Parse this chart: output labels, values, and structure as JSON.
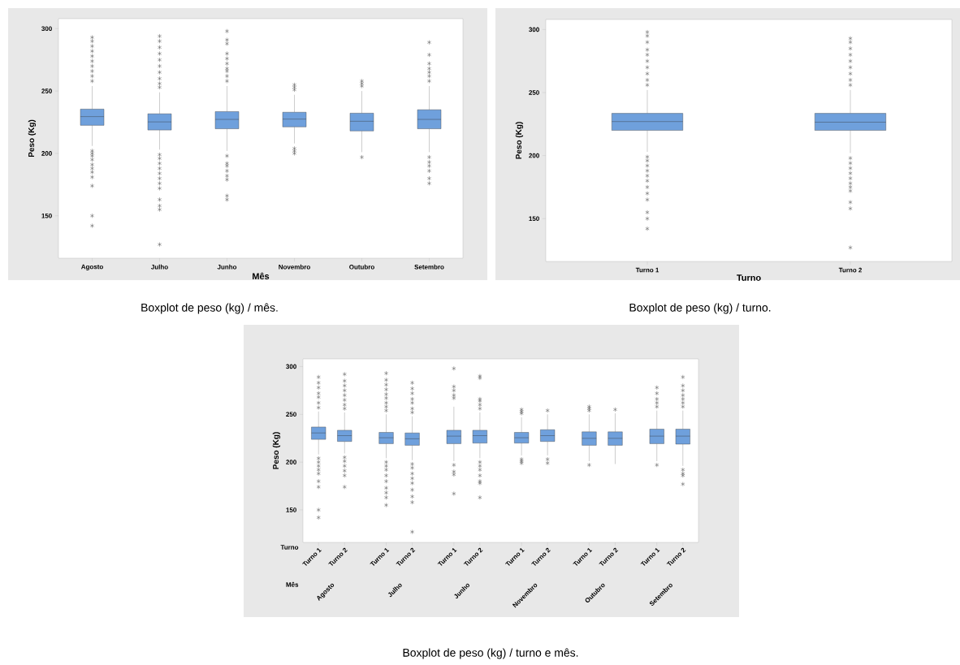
{
  "chart_data": [
    {
      "type": "box",
      "xlabel": "Mês",
      "ylabel": "Peso (Kg)",
      "categories": [
        "Agosto",
        "Julho",
        "Junho",
        "Novembro",
        "Outubro",
        "Setembro"
      ],
      "color": "#6fa0dc",
      "marker": "star",
      "ylim": [
        116,
        308
      ],
      "yticks": [
        150,
        200,
        250,
        300
      ],
      "boxes": [
        {
          "low": 206,
          "q1": 222.5,
          "median": 229.5,
          "q3": 235.5,
          "high": 254,
          "outliers": [
            258,
            262,
            266,
            270,
            274,
            278,
            282,
            286,
            290,
            293,
            202,
            200,
            198,
            195,
            191,
            188,
            185,
            181,
            174,
            150,
            142
          ]
        },
        {
          "low": 203,
          "q1": 218.75,
          "median": 225.25,
          "q3": 231.75,
          "high": 249,
          "outliers": [
            253,
            256,
            260,
            265,
            270,
            275,
            280,
            285,
            290,
            294,
            199,
            196,
            192,
            188,
            184,
            180,
            176,
            172,
            163,
            158,
            155,
            127
          ]
        },
        {
          "low": 202,
          "q1": 219.75,
          "median": 227.25,
          "q3": 233.5,
          "high": 254,
          "outliers": [
            258,
            262,
            266,
            268,
            272,
            276,
            280,
            288,
            291,
            298,
            198,
            192,
            190,
            186,
            182,
            179,
            166,
            163
          ]
        },
        {
          "low": 208,
          "q1": 221.25,
          "median": 227.5,
          "q3": 233,
          "high": 247,
          "outliers": [
            251,
            253,
            255,
            204,
            202,
            200
          ]
        },
        {
          "low": 201,
          "q1": 218,
          "median": 225.75,
          "q3": 232.25,
          "high": 250,
          "outliers": [
            254,
            256,
            258,
            197
          ]
        },
        {
          "low": 201,
          "q1": 219.75,
          "median": 227.25,
          "q3": 235,
          "high": 254,
          "outliers": [
            258,
            262,
            265,
            268,
            272,
            279,
            289,
            197,
            193,
            190,
            186,
            180,
            176
          ]
        }
      ],
      "annotations": [
        "Boxplot de peso (kg) / mês."
      ]
    },
    {
      "type": "box",
      "xlabel": "Turno",
      "ylabel": "Peso (Kg)",
      "categories": [
        "Turno 1",
        "Turno 2"
      ],
      "color": "#6fa0dc",
      "marker": "star",
      "ylim": [
        116,
        308
      ],
      "yticks": [
        150,
        200,
        250,
        300
      ],
      "boxes": [
        {
          "low": 203,
          "q1": 220,
          "median": 227,
          "q3": 233.5,
          "high": 252,
          "outliers": [
            256,
            260,
            265,
            270,
            275,
            280,
            284,
            290,
            295,
            298,
            199,
            196,
            192,
            188,
            184,
            180,
            175,
            170,
            165,
            155,
            150,
            142
          ]
        },
        {
          "low": 202,
          "q1": 220,
          "median": 226.5,
          "q3": 233.5,
          "high": 252,
          "outliers": [
            256,
            260,
            265,
            270,
            275,
            280,
            285,
            290,
            293,
            198,
            194,
            190,
            186,
            182,
            178,
            175,
            172,
            163,
            158,
            127
          ]
        }
      ],
      "annotations": [
        "Boxplot de peso (kg) / turno."
      ]
    },
    {
      "type": "box",
      "xlabel": "Turno",
      "ylabel": "Peso (Kg)",
      "categories": [
        "Turno 1",
        "Turno 2",
        "Turno 1",
        "Turno 2",
        "Turno 1",
        "Turno 2",
        "Turno 1",
        "Turno 2",
        "Turno 1",
        "Turno 2",
        "Turno 1",
        "Turno 2"
      ],
      "color": "#6fa0dc",
      "marker": "star",
      "ylim": [
        116,
        308
      ],
      "yticks": [
        150,
        200,
        250,
        300
      ],
      "boxes": [
        {
          "low": 208,
          "q1": 223.8,
          "median": 230.5,
          "q3": 236.7,
          "high": 253,
          "outliers": [
            257,
            262,
            268,
            272,
            278,
            283,
            289,
            204,
            200,
            196,
            192,
            188,
            180,
            174,
            150,
            142
          ]
        },
        {
          "low": 209,
          "q1": 221.6,
          "median": 227.7,
          "q3": 233.3,
          "high": 252,
          "outliers": [
            256,
            260,
            265,
            270,
            275,
            280,
            285,
            292,
            205,
            201,
            196,
            191,
            186,
            174
          ]
        },
        {
          "low": 204,
          "q1": 219.3,
          "median": 225.5,
          "q3": 231.1,
          "high": 250,
          "outliers": [
            254,
            258,
            262,
            267,
            271,
            276,
            281,
            286,
            293,
            200,
            196,
            192,
            186,
            180,
            173,
            168,
            163,
            155
          ]
        },
        {
          "low": 202,
          "q1": 217.6,
          "median": 224.4,
          "q3": 230.5,
          "high": 248,
          "outliers": [
            252,
            256,
            262,
            266,
            272,
            277,
            283,
            198,
            194,
            188,
            183,
            178,
            171,
            164,
            158,
            127
          ]
        },
        {
          "low": 201,
          "q1": 219.3,
          "median": 227.2,
          "q3": 233.3,
          "high": 258,
          "outliers": [
            267,
            270,
            275,
            279,
            298,
            197,
            190,
            187,
            167
          ]
        },
        {
          "low": 204,
          "q1": 219.9,
          "median": 227.7,
          "q3": 233.3,
          "high": 252,
          "outliers": [
            256,
            260,
            264,
            266,
            288,
            290,
            200,
            196,
            192,
            186,
            180,
            178,
            163
          ]
        },
        {
          "low": 207,
          "q1": 219.9,
          "median": 225.5,
          "q3": 231.1,
          "high": 247,
          "outliers": [
            251,
            253,
            255,
            203,
            201,
            199
          ]
        },
        {
          "low": 207,
          "q1": 221.6,
          "median": 227.7,
          "q3": 233.9,
          "high": 250,
          "outliers": [
            254,
            203,
            199
          ]
        },
        {
          "low": 201,
          "q1": 217.6,
          "median": 224.9,
          "q3": 231.7,
          "high": 250,
          "outliers": [
            254,
            256,
            258,
            197
          ]
        },
        {
          "low": 198,
          "q1": 217.6,
          "median": 224.9,
          "q3": 231.7,
          "high": 251,
          "outliers": [
            255
          ]
        },
        {
          "low": 201,
          "q1": 219.3,
          "median": 227.2,
          "q3": 234.5,
          "high": 254,
          "outliers": [
            258,
            262,
            266,
            272,
            278,
            197
          ]
        },
        {
          "low": 196,
          "q1": 218.8,
          "median": 227.2,
          "q3": 234.5,
          "high": 254,
          "outliers": [
            258,
            262,
            266,
            270,
            275,
            280,
            289,
            192,
            188,
            186,
            177
          ]
        }
      ],
      "annotations": [
        "Boxplot de peso (kg) / turno e mês.",
        "Mês",
        "Agosto",
        "Julho",
        "Junho",
        "Novembro",
        "Outubro",
        "Setembro"
      ]
    }
  ]
}
